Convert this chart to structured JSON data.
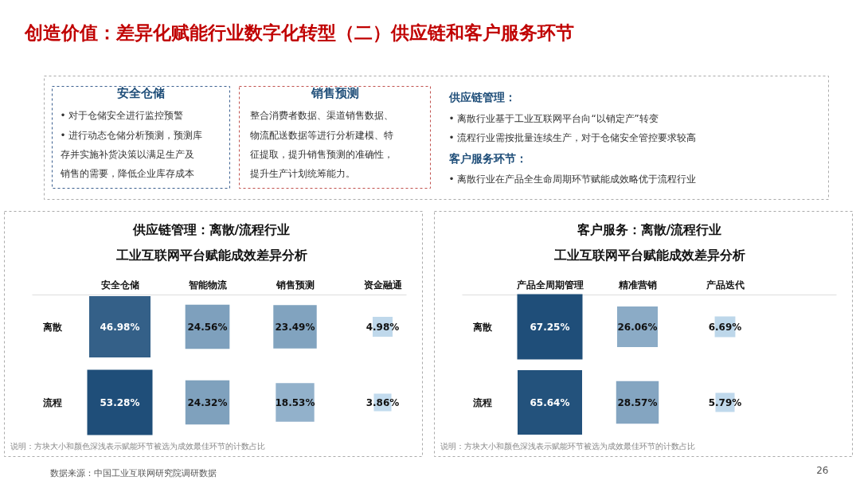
{
  "chart_data": [
    {
      "type": "other",
      "title": "创造价值：差异化赋能行业数字化转型（二）供应链和客户服务环节",
      "annotations": [
        "安全仓储",
        "•  对于仓储安全进行监控预警",
        "•  进行动态仓储分析预测，预测库",
        "    存并实施补货决策以满足生产及",
        "    销售的需要，降低企业库存成本",
        "销售预测",
        "整合消费者数据、渠道销售数据、",
        "物流配送数据等进行分析建模、特",
        "征提取，提升销售预测的准确性，",
        "提升生产计划统筹能力。",
        "供应链管理：",
        "•    离散行业基于工业互联网平台向“以销定产”转变",
        "•    流程行业需按批量连续生产，对于仓储安全管控要求较高",
        "客户服务环节：",
        "•    离散行业在产品全生命周期环节赋能成效略优于流程行业",
        "数据来源：中国工业互联网研究院调研数据",
        "26"
      ]
    },
    {
      "type": "heatmap",
      "title": "供应链管理：离散/流程行业",
      "subtitle": "工业互联网平台赋能成效差异分析",
      "categories": [
        "安全仓储",
        "智能物流",
        "销售预测",
        "资金融通"
      ],
      "y_categories": [
        "离散",
        "流程"
      ],
      "cells": [
        [
          46.98,
          24.56,
          23.49,
          4.98
        ],
        [
          53.28,
          24.32,
          18.53,
          3.86
        ]
      ],
      "cell_labels": [
        [
          "46.98%",
          "24.56%",
          "23.49%",
          "4.98%"
        ],
        [
          "53.28%",
          "24.32%",
          "18.53%",
          "3.86%"
        ]
      ],
      "annotations": [
        "说明：方块大小和颜色深浅表示赋能环节被选为成效最佳环节的计数占比"
      ]
    },
    {
      "type": "heatmap",
      "title": "客户服务：离散/流程行业",
      "subtitle": "工业互联网平台赋能成效差异分析",
      "categories": [
        "产品全周期管理",
        "精准营销",
        "产品迭代"
      ],
      "y_categories": [
        "离散",
        "流程"
      ],
      "cells": [
        [
          67.25,
          26.06,
          6.69
        ],
        [
          65.64,
          28.57,
          5.79
        ]
      ],
      "cell_labels": [
        [
          "67.25%",
          "26.06%",
          "6.69%"
        ],
        [
          "65.64%",
          "28.57%",
          "5.79%"
        ]
      ],
      "annotations": [
        "说明：方块大小和颜色深浅表示赋能环节被选为成效最佳环节的计数占比"
      ]
    }
  ]
}
